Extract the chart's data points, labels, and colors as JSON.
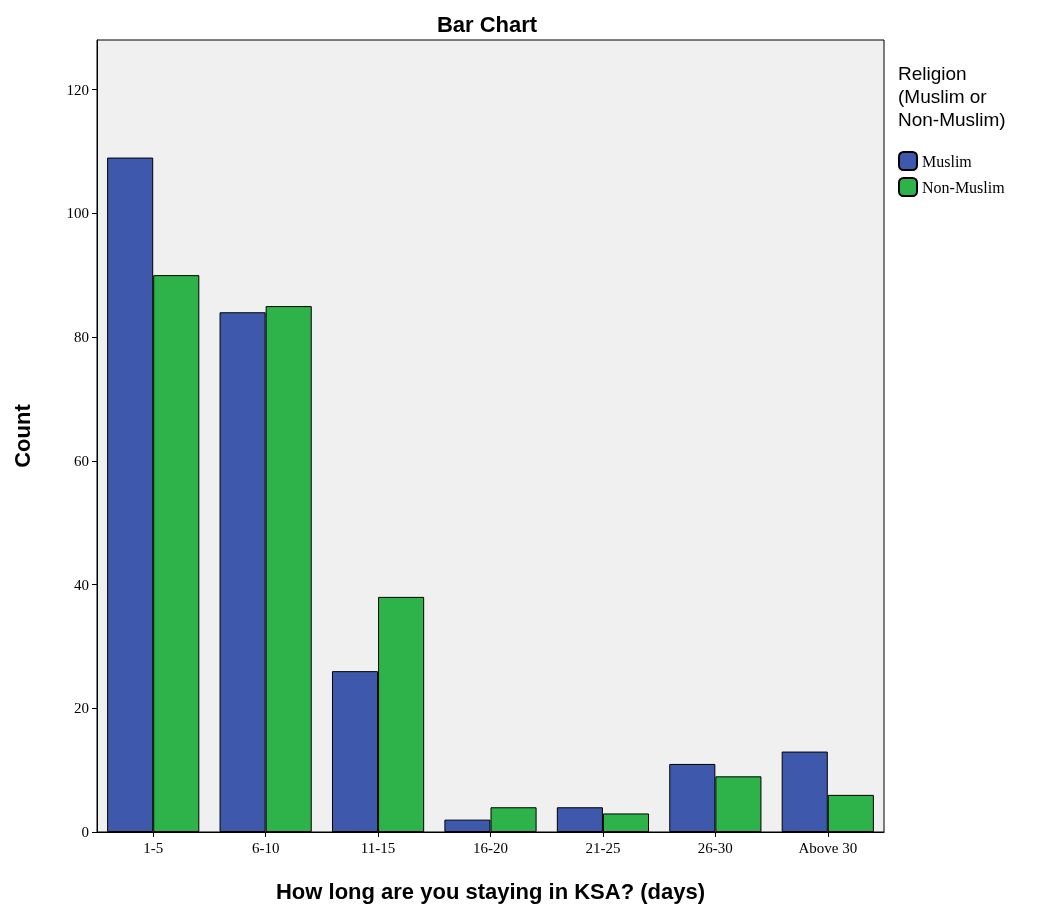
{
  "chart_data": {
    "type": "bar",
    "title": "Bar Chart",
    "xlabel": "How long are you staying in KSA? (days)",
    "ylabel": "Count",
    "legend_title": "Religion\n(Muslim or\nNon-Muslim)",
    "categories": [
      "1-5",
      "6-10",
      "11-15",
      "16-20",
      "21-25",
      "26-30",
      "Above 30"
    ],
    "series": [
      {
        "name": "Muslim",
        "color": "#3e58ac",
        "values": [
          109,
          84,
          26,
          2,
          4,
          11,
          13
        ]
      },
      {
        "name": "Non-Muslim",
        "color": "#2db34a",
        "values": [
          90,
          85,
          38,
          4,
          3,
          9,
          6
        ]
      }
    ],
    "ylim": [
      0,
      128
    ],
    "yticks": [
      0,
      20,
      40,
      60,
      80,
      100,
      120
    ],
    "grid": false,
    "legend": "top right"
  }
}
